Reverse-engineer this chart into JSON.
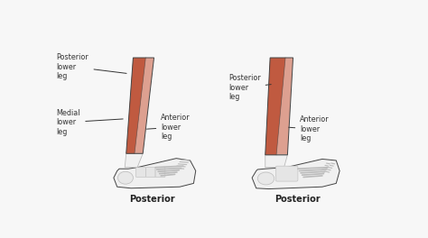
{
  "bg_color": "#f7f7f7",
  "label1_posterior": "Posterior\nlower\nleg",
  "label1_medial": "Medial\nlower\nleg",
  "label1_anterior": "Anterior\nlower\nleg",
  "label2_posterior": "Posterior\nlower\nleg",
  "label2_anterior": "Anterior\nlower\nleg",
  "title1": "Posterior",
  "title2": "Posterior",
  "muscle_dark": "#c05a40",
  "muscle_light": "#dda090",
  "bone_fill": "#f0f0f0",
  "bone_outline": "#bbbbbb",
  "line_color": "#444444",
  "title_fontsize": 7,
  "label_fontsize": 5.8
}
